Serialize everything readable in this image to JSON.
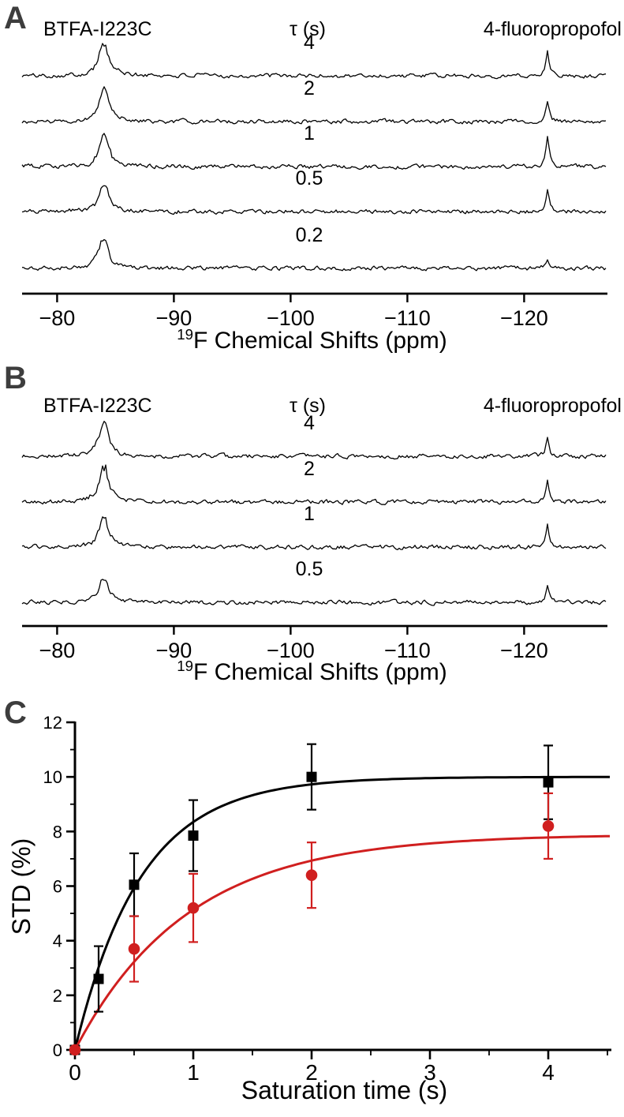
{
  "panel_a": {
    "label": "A",
    "protein_header": "BTFA-I223C",
    "tau_header": "τ (s)",
    "ligand_header": "4-fluoropropofol",
    "tau_values": [
      "4",
      "2",
      "1",
      "0.5",
      "0.2"
    ],
    "xlabel_superscript": "19",
    "xlabel_text": "F Chemical Shifts (ppm)",
    "x_tick_labels": [
      "−80",
      "−90",
      "−100",
      "−110",
      "−120"
    ]
  },
  "panel_b": {
    "label": "B",
    "protein_header": "BTFA-I223C",
    "tau_header": "τ (s)",
    "ligand_header": "4-fluoropropofol",
    "tau_values": [
      "4",
      "2",
      "1",
      "0.5"
    ],
    "xlabel_superscript": "19",
    "xlabel_text": "F Chemical Shifts (ppm)",
    "x_tick_labels": [
      "−80",
      "−90",
      "−100",
      "−110",
      "−120"
    ]
  },
  "panel_c": {
    "label": "C",
    "xlabel": "Saturation time (s)",
    "ylabel": "STD (%)",
    "x_tick_labels": [
      "0",
      "1",
      "2",
      "3",
      "4"
    ],
    "y_tick_labels": [
      "0",
      "2",
      "4",
      "6",
      "8",
      "10",
      "12"
    ]
  },
  "colors": {
    "black_series": "#000000",
    "red_series": "#d01f1f",
    "panel_letter": "#3d3d3d"
  },
  "chart_data": [
    {
      "panel": "A",
      "type": "line",
      "subtype": "nmr_spectra_stack",
      "left_peak_label": "BTFA-I223C",
      "right_peak_label": "4-fluoropropofol",
      "saturation_times_s": [
        4,
        2,
        1,
        0.5,
        0.2
      ],
      "xlabel": "19F Chemical Shifts (ppm)",
      "x_ticks_ppm": [
        -80,
        -90,
        -100,
        -110,
        -120
      ],
      "x_range_ppm": [
        -77,
        -127
      ],
      "peak_ppm_btfa": -84,
      "peak_ppm_fluoropropofol": -122,
      "peak_heights_btfa": [
        42,
        40,
        38,
        34,
        40
      ],
      "peak_heights_ligand": [
        34,
        26,
        36,
        30,
        14
      ]
    },
    {
      "panel": "B",
      "type": "line",
      "subtype": "nmr_spectra_stack",
      "left_peak_label": "BTFA-I223C",
      "right_peak_label": "4-fluoropropofol",
      "saturation_times_s": [
        4,
        2,
        1,
        0.5
      ],
      "xlabel": "19F Chemical Shifts (ppm)",
      "x_ticks_ppm": [
        -80,
        -90,
        -100,
        -110,
        -120
      ],
      "x_range_ppm": [
        -77,
        -127
      ],
      "peak_ppm_btfa": -84,
      "peak_ppm_fluoropropofol": -122,
      "peak_heights_btfa": [
        40,
        44,
        38,
        34
      ],
      "peak_heights_ligand": [
        26,
        30,
        28,
        20
      ]
    },
    {
      "panel": "C",
      "type": "scatter",
      "xlabel": "Saturation time (s)",
      "ylabel": "STD (%)",
      "xlim": [
        0,
        4.5
      ],
      "ylim": [
        0,
        12
      ],
      "x_ticks": [
        0,
        1,
        2,
        3,
        4
      ],
      "y_ticks": [
        0,
        2,
        4,
        6,
        8,
        10,
        12
      ],
      "series": [
        {
          "name": "BTFA-I223C (black squares)",
          "marker": "square",
          "color": "#000000",
          "x": [
            0,
            0.2,
            0.5,
            1,
            2,
            4
          ],
          "y": [
            0,
            2.6,
            6.05,
            7.85,
            10.0,
            9.8
          ],
          "yerr": [
            0,
            1.2,
            1.15,
            1.3,
            1.2,
            1.35
          ],
          "fit_plateau": 10.0,
          "fit_rate": 1.8
        },
        {
          "name": "4-fluoropropofol (red circles)",
          "marker": "circle",
          "color": "#d01f1f",
          "x": [
            0,
            0.5,
            1,
            2,
            4
          ],
          "y": [
            0,
            3.7,
            5.2,
            6.4,
            8.2
          ],
          "yerr": [
            0,
            1.2,
            1.25,
            1.2,
            1.2
          ],
          "fit_plateau": 7.9,
          "fit_rate": 1.05
        }
      ]
    }
  ]
}
